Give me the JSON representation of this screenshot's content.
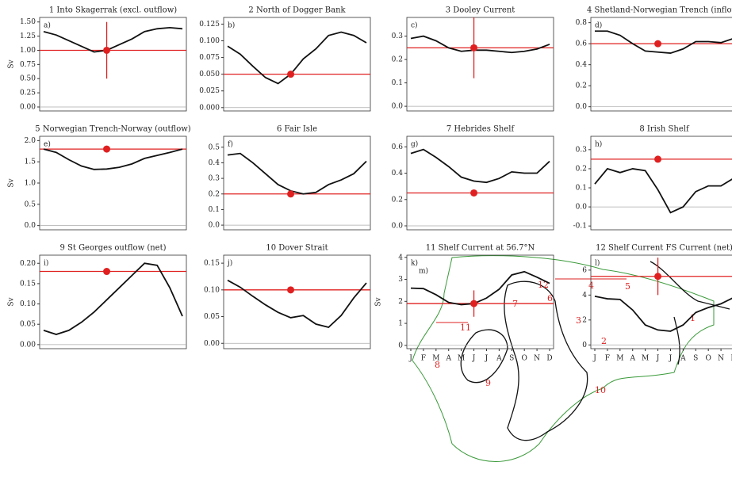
{
  "chart_data": [
    {
      "type": "line",
      "title": "1 Into Skagerrak (excl. outflow)",
      "panel": "a)",
      "ylabel": "Sv",
      "values": [
        1.33,
        1.27,
        1.17,
        1.07,
        0.97,
        1.0,
        1.1,
        1.2,
        1.33,
        1.38,
        1.4,
        1.38
      ],
      "obs": 1.0,
      "obs_err": 0.5,
      "ylim": [
        -0.07,
        1.58
      ],
      "yticks": [
        {
          "value": 0,
          "label": "0.00"
        },
        {
          "value": 0.25,
          "label": "0.25"
        },
        {
          "value": 0.5,
          "label": "0.50"
        },
        {
          "value": 0.75,
          "label": "0.75"
        },
        {
          "value": 1,
          "label": "1.00"
        },
        {
          "value": 1.25,
          "label": "1.25"
        },
        {
          "value": 1.5,
          "label": "1.50"
        }
      ]
    },
    {
      "type": "line",
      "title": "2 North of Dogger Bank",
      "panel": "b)",
      "values": [
        0.092,
        0.08,
        0.062,
        0.045,
        0.036,
        0.05,
        0.073,
        0.088,
        0.108,
        0.113,
        0.108,
        0.097
      ],
      "obs": 0.05,
      "ylim": [
        -0.005,
        0.135
      ],
      "yticks": [
        {
          "value": 0,
          "label": "0.000"
        },
        {
          "value": 0.025,
          "label": "0.025"
        },
        {
          "value": 0.05,
          "label": "0.050"
        },
        {
          "value": 0.075,
          "label": "0.075"
        },
        {
          "value": 0.1,
          "label": "0.100"
        },
        {
          "value": 0.125,
          "label": "0.125"
        }
      ]
    },
    {
      "type": "line",
      "title": "3 Dooley Current",
      "panel": "c)",
      "values": [
        0.29,
        0.3,
        0.28,
        0.25,
        0.235,
        0.24,
        0.24,
        0.235,
        0.23,
        0.235,
        0.245,
        0.265
      ],
      "obs": 0.25,
      "obs_err": 0.13,
      "ylim": [
        -0.02,
        0.38
      ],
      "yticks": [
        {
          "value": 0,
          "label": "0.0"
        },
        0.1,
        0.2,
        0.3
      ]
    },
    {
      "type": "line",
      "title": "4 Shetland-Norwegian Trench (inflow)",
      "panel": "d)",
      "values": [
        0.72,
        0.72,
        0.68,
        0.6,
        0.53,
        0.52,
        0.51,
        0.55,
        0.62,
        0.62,
        0.61,
        0.65
      ],
      "obs": 0.6,
      "ylim": [
        -0.04,
        0.85
      ],
      "yticks": [
        {
          "value": 0,
          "label": "0.0"
        },
        0.2,
        0.4,
        0.6,
        0.8
      ]
    },
    {
      "type": "line",
      "title": "5 Norwegian Trench-Norway (outflow)",
      "panel": "e)",
      "ylabel": "Sv",
      "values": [
        1.8,
        1.72,
        1.55,
        1.4,
        1.32,
        1.33,
        1.37,
        1.45,
        1.58,
        1.65,
        1.72,
        1.8
      ],
      "obs": 1.8,
      "ylim": [
        -0.1,
        2.1
      ],
      "yticks": [
        {
          "value": 0,
          "label": "0.0"
        },
        0.5,
        {
          "value": 1,
          "label": "1.0"
        },
        1.5,
        {
          "value": 2,
          "label": "2.0"
        }
      ]
    },
    {
      "type": "line",
      "title": "6 Fair Isle",
      "panel": "f)",
      "values": [
        0.45,
        0.46,
        0.4,
        0.33,
        0.26,
        0.22,
        0.2,
        0.21,
        0.26,
        0.29,
        0.33,
        0.41
      ],
      "obs": 0.2,
      "ylim": [
        -0.03,
        0.57
      ],
      "yticks": [
        {
          "value": 0,
          "label": "0.0"
        },
        0.1,
        0.2,
        0.3,
        0.4,
        0.5
      ]
    },
    {
      "type": "line",
      "title": "7 Hebrides Shelf",
      "panel": "g)",
      "values": [
        0.55,
        0.58,
        0.52,
        0.45,
        0.37,
        0.34,
        0.33,
        0.36,
        0.41,
        0.4,
        0.4,
        0.49
      ],
      "obs": 0.25,
      "ylim": [
        -0.03,
        0.68
      ],
      "yticks": [
        {
          "value": 0,
          "label": "0.0"
        },
        0.2,
        0.4,
        0.6
      ]
    },
    {
      "type": "line",
      "title": "8 Irish Shelf",
      "panel": "h)",
      "values": [
        0.12,
        0.2,
        0.18,
        0.2,
        0.19,
        0.09,
        -0.03,
        0.0,
        0.08,
        0.11,
        0.11,
        0.15
      ],
      "obs": 0.25,
      "ylim": [
        -0.12,
        0.37
      ],
      "yticks": [
        -0.1,
        {
          "value": 0,
          "label": "0.0"
        },
        0.1,
        0.2,
        0.3
      ]
    },
    {
      "type": "line",
      "title": "9 St Georges outflow (net)",
      "panel": "i)",
      "ylabel": "Sv",
      "values": [
        0.035,
        0.025,
        0.035,
        0.055,
        0.08,
        0.11,
        0.14,
        0.17,
        0.2,
        0.195,
        0.14,
        0.07
      ],
      "obs": 0.18,
      "ylim": [
        -0.01,
        0.22
      ],
      "yticks": [
        {
          "value": 0,
          "label": "0.00"
        },
        0.05,
        {
          "value": 0.1,
          "label": "0.10"
        },
        0.15,
        {
          "value": 0.2,
          "label": "0.20"
        }
      ]
    },
    {
      "type": "line",
      "title": "10 Dover Strait",
      "panel": "j)",
      "values": [
        0.118,
        0.105,
        0.088,
        0.072,
        0.058,
        0.048,
        0.052,
        0.036,
        0.03,
        0.052,
        0.085,
        0.113
      ],
      "obs": 0.1,
      "ylim": [
        -0.01,
        0.165
      ],
      "yticks": [
        {
          "value": 0,
          "label": "0.00"
        },
        0.05,
        {
          "value": 0.1,
          "label": "0.10"
        },
        0.15
      ]
    },
    {
      "type": "line",
      "title": "11 Shelf Current at 56.7°N",
      "panel": "k)",
      "ylabel": "Sv",
      "categories": [
        "J",
        "F",
        "M",
        "A",
        "M",
        "J",
        "J",
        "A",
        "S",
        "O",
        "N",
        "D"
      ],
      "values": [
        2.6,
        2.58,
        2.3,
        1.95,
        1.85,
        1.9,
        2.15,
        2.55,
        3.2,
        3.35,
        3.1,
        2.82
      ],
      "obs": 1.9,
      "obs_err": 0.6,
      "ylim": [
        -0.15,
        4.1
      ],
      "yticks": [
        0,
        1,
        2,
        3,
        4
      ]
    },
    {
      "type": "line",
      "title": "12 Shelf Current FS Current (net)",
      "panel": "l)",
      "categories": [
        "J",
        "F",
        "M",
        "A",
        "M",
        "J",
        "J",
        "A",
        "S",
        "O",
        "N",
        "D"
      ],
      "values": [
        3.9,
        3.7,
        3.65,
        2.8,
        1.6,
        1.2,
        1.1,
        1.6,
        2.6,
        3.0,
        3.3,
        3.8
      ],
      "obs": 5.5,
      "obs_err": 1.5,
      "ylim": [
        -0.3,
        7.2
      ],
      "yticks": [
        0,
        2,
        4,
        6
      ]
    }
  ],
  "map": {
    "panel": "m)",
    "sections": [
      "1",
      "2",
      "3",
      "4",
      "5",
      "6",
      "7",
      "8",
      "9",
      "10",
      "11",
      "12"
    ]
  }
}
